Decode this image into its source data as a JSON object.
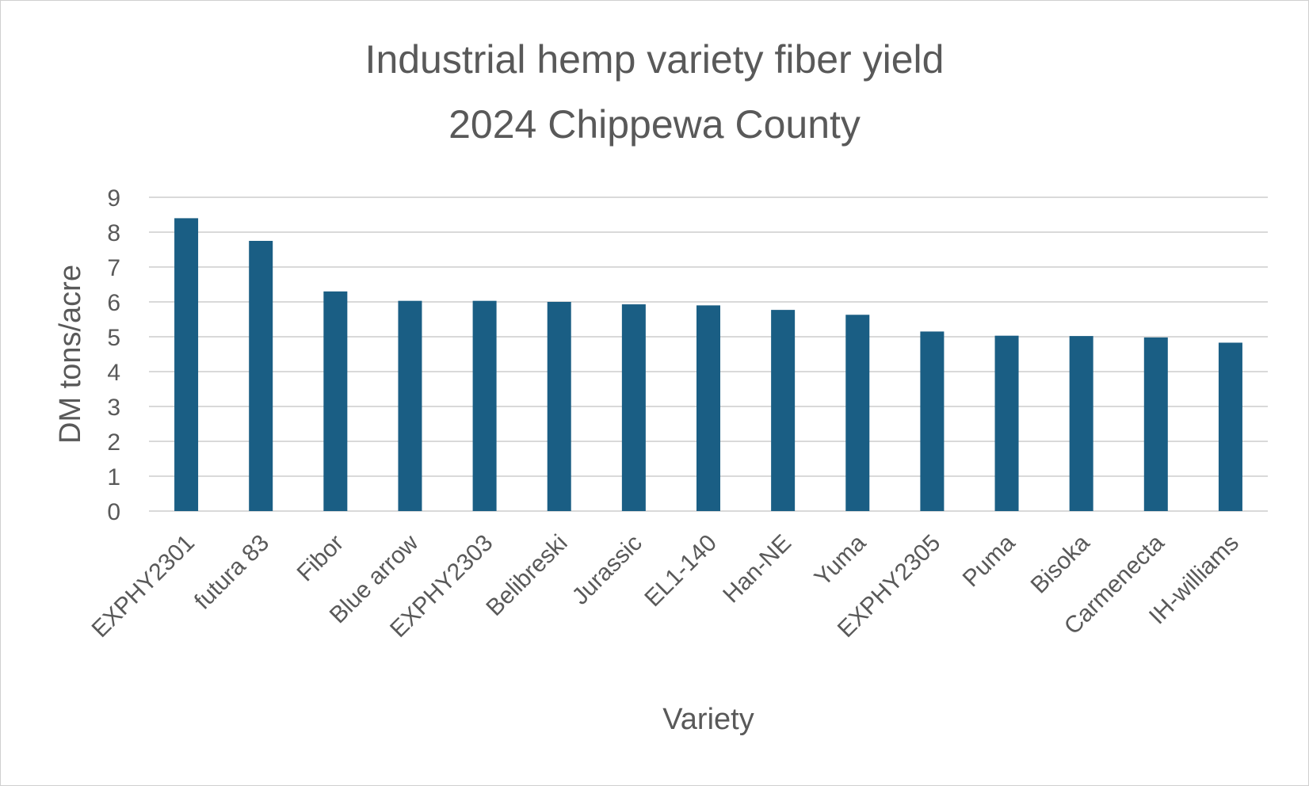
{
  "chart_data": {
    "type": "bar",
    "title": "Industrial hemp variety fiber yield",
    "subtitle": "2024 Chippewa County",
    "xlabel": "Variety",
    "ylabel": "DM tons/acre",
    "ylim": [
      0,
      9
    ],
    "yticks": [
      "0",
      "1",
      "2",
      "3",
      "4",
      "5",
      "6",
      "7",
      "8",
      "9"
    ],
    "grid": true,
    "legend": "none",
    "bar_color": "#1a5e84",
    "categories": [
      "EXPHY2301",
      "futura 83",
      "Fibor",
      "Blue arrow",
      "EXPHY2303",
      "Belibreski",
      "Jurassic",
      "EL1-140",
      "Han-NE",
      "Yuma",
      "EXPHY2305",
      "Puma",
      "Bisoka",
      "Carmenecta",
      "IH-williams"
    ],
    "values": [
      8.4,
      7.75,
      6.3,
      6.03,
      6.03,
      6.0,
      5.93,
      5.9,
      5.77,
      5.63,
      5.15,
      5.03,
      5.02,
      4.98,
      4.83
    ]
  }
}
